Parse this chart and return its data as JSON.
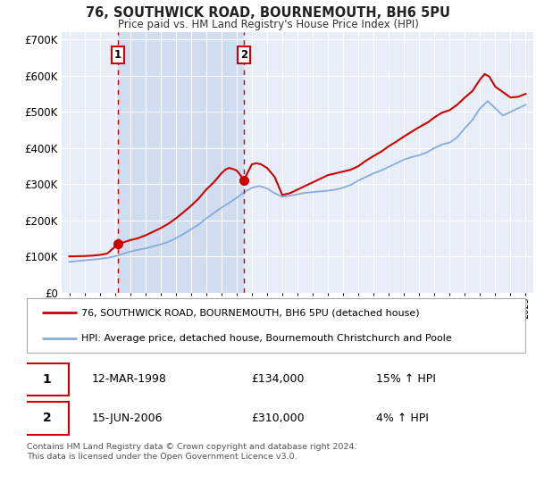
{
  "title": "76, SOUTHWICK ROAD, BOURNEMOUTH, BH6 5PU",
  "subtitle": "Price paid vs. HM Land Registry's House Price Index (HPI)",
  "legend_line1": "76, SOUTHWICK ROAD, BOURNEMOUTH, BH6 5PU (detached house)",
  "legend_line2": "HPI: Average price, detached house, Bournemouth Christchurch and Poole",
  "sale1_date": "12-MAR-1998",
  "sale1_price": "£134,000",
  "sale1_hpi": "15% ↑ HPI",
  "sale1_year": 1998.2,
  "sale1_value": 134000,
  "sale2_date": "15-JUN-2006",
  "sale2_price": "£310,000",
  "sale2_hpi": "4% ↑ HPI",
  "sale2_year": 2006.46,
  "sale2_value": 310000,
  "ylim": [
    0,
    720000
  ],
  "yticks": [
    0,
    100000,
    200000,
    300000,
    400000,
    500000,
    600000,
    700000
  ],
  "background_color": "#ffffff",
  "plot_bg_color": "#e8eef8",
  "shade_color": "#d0dcf0",
  "grid_color": "#ffffff",
  "red_color": "#cc0000",
  "blue_color": "#88aadd",
  "footnote": "Contains HM Land Registry data © Crown copyright and database right 2024.\nThis data is licensed under the Open Government Licence v3.0.",
  "hpi_years": [
    1995,
    1995.5,
    1996,
    1996.5,
    1997,
    1997.5,
    1998,
    1998.5,
    1999,
    1999.5,
    2000,
    2000.5,
    2001,
    2001.5,
    2002,
    2002.5,
    2003,
    2003.5,
    2004,
    2004.5,
    2005,
    2005.5,
    2006,
    2006.5,
    2007,
    2007.5,
    2008,
    2008.5,
    2009,
    2009.5,
    2010,
    2010.5,
    2011,
    2011.5,
    2012,
    2012.5,
    2013,
    2013.5,
    2014,
    2014.5,
    2015,
    2015.5,
    2016,
    2016.5,
    2017,
    2017.5,
    2018,
    2018.5,
    2019,
    2019.5,
    2020,
    2020.5,
    2021,
    2021.5,
    2022,
    2022.5,
    2023,
    2023.5,
    2024,
    2024.5,
    2025
  ],
  "hpi_vals": [
    85000,
    87000,
    89000,
    91000,
    93000,
    96000,
    100000,
    107000,
    113000,
    118000,
    122000,
    128000,
    133000,
    140000,
    150000,
    162000,
    175000,
    188000,
    205000,
    220000,
    235000,
    248000,
    262000,
    278000,
    290000,
    295000,
    288000,
    275000,
    265000,
    268000,
    272000,
    276000,
    278000,
    280000,
    282000,
    285000,
    290000,
    298000,
    310000,
    320000,
    330000,
    338000,
    348000,
    358000,
    368000,
    375000,
    380000,
    388000,
    400000,
    410000,
    415000,
    430000,
    455000,
    478000,
    510000,
    530000,
    510000,
    490000,
    500000,
    510000,
    520000
  ],
  "red_years": [
    1995,
    1995.5,
    1996,
    1996.5,
    1997,
    1997.5,
    1998.2,
    1998.5,
    1999,
    1999.5,
    2000,
    2000.5,
    2001,
    2001.5,
    2002,
    2002.5,
    2003,
    2003.5,
    2004,
    2004.5,
    2005,
    2005.25,
    2005.5,
    2005.75,
    2006,
    2006.25,
    2006.46,
    2006.7,
    2007,
    2007.3,
    2007.6,
    2008,
    2008.5,
    2009,
    2009.5,
    2010,
    2010.5,
    2011,
    2011.5,
    2012,
    2012.5,
    2013,
    2013.5,
    2014,
    2014.5,
    2015,
    2015.5,
    2016,
    2016.5,
    2017,
    2017.5,
    2018,
    2018.3,
    2018.6,
    2019,
    2019.5,
    2020,
    2020.5,
    2021,
    2021.5,
    2022,
    2022.3,
    2022.6,
    2023,
    2023.5,
    2024,
    2024.5,
    2025
  ],
  "red_vals": [
    100000,
    100500,
    101000,
    102000,
    104000,
    108000,
    134000,
    138000,
    145000,
    150000,
    158000,
    168000,
    178000,
    190000,
    205000,
    222000,
    240000,
    260000,
    285000,
    305000,
    330000,
    340000,
    345000,
    342000,
    338000,
    325000,
    310000,
    330000,
    355000,
    358000,
    355000,
    345000,
    320000,
    270000,
    275000,
    285000,
    295000,
    305000,
    315000,
    325000,
    330000,
    335000,
    340000,
    350000,
    365000,
    378000,
    390000,
    405000,
    418000,
    432000,
    445000,
    458000,
    465000,
    472000,
    485000,
    498000,
    505000,
    520000,
    540000,
    558000,
    590000,
    605000,
    598000,
    570000,
    555000,
    540000,
    542000,
    550000
  ]
}
